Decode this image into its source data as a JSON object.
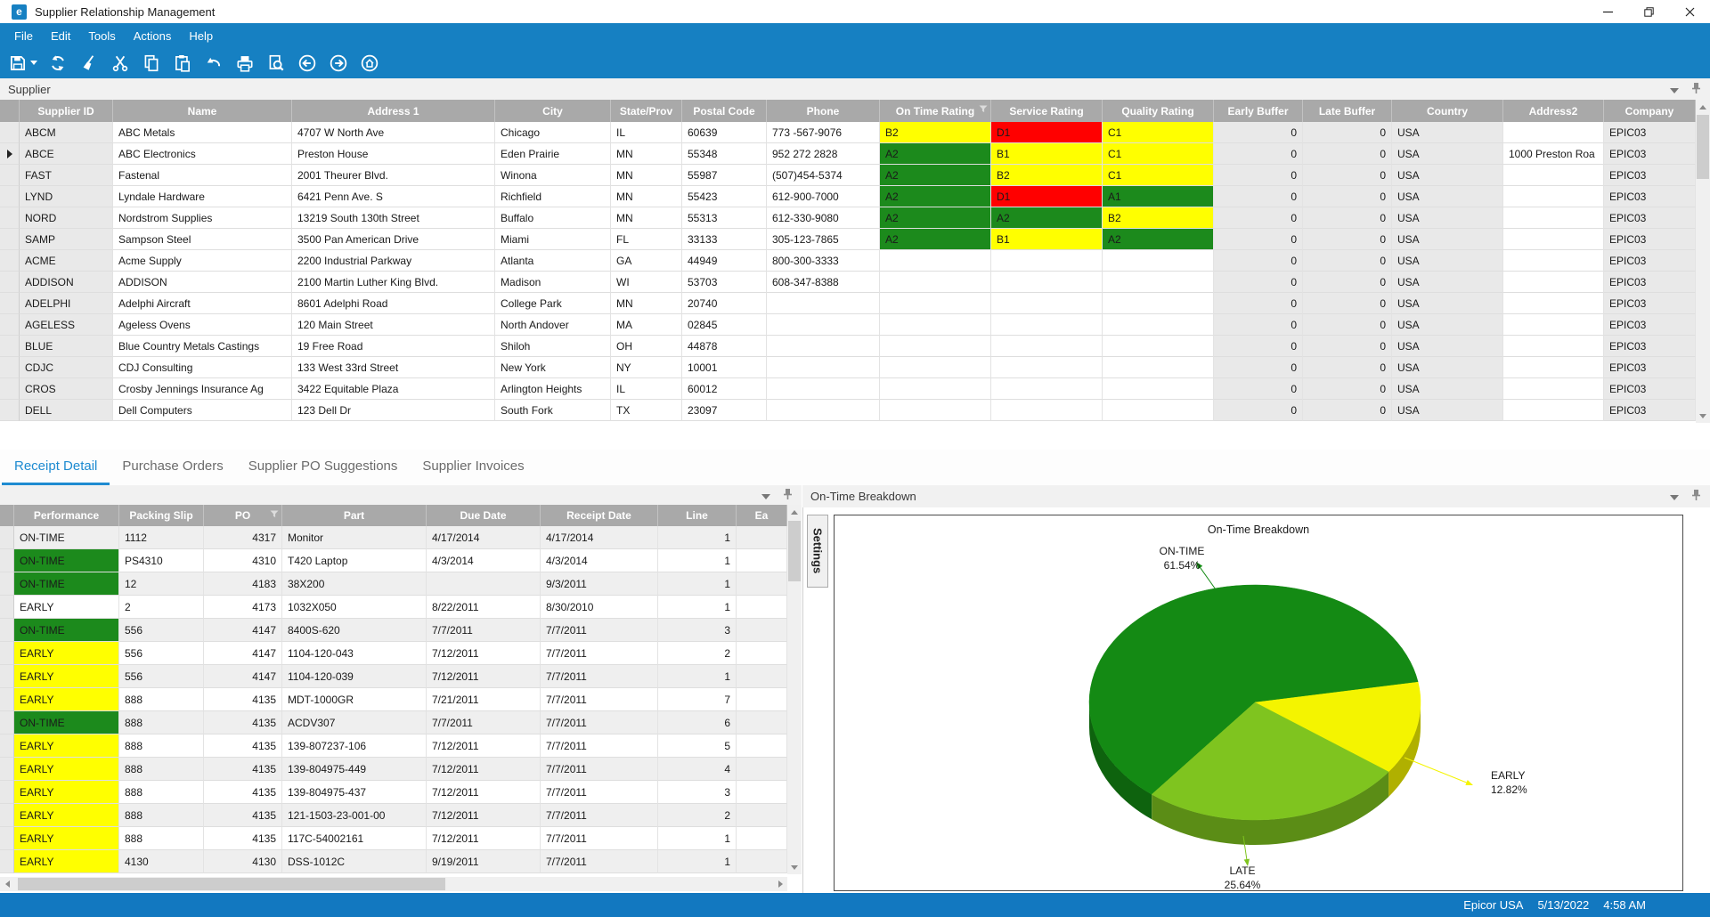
{
  "window": {
    "title": "Supplier Relationship Management",
    "logo": "e",
    "controls": [
      "minimize",
      "restore",
      "close"
    ]
  },
  "menu_bar": {
    "items": [
      "File",
      "Edit",
      "Tools",
      "Actions",
      "Help"
    ]
  },
  "toolbar": {
    "buttons": [
      "save",
      "refresh",
      "clear",
      "cut",
      "copy",
      "paste",
      "undo",
      "print",
      "print-preview",
      "back",
      "forward",
      "home"
    ]
  },
  "supplier_panel": {
    "title": "Supplier",
    "columns": [
      "",
      "Supplier ID",
      "Name",
      "Address 1",
      "City",
      "State/Prov",
      "Postal Code",
      "Phone",
      "On Time Rating",
      "Service Rating",
      "Quality Rating",
      "Early Buffer",
      "Late Buffer",
      "Country",
      "Address2",
      "Company"
    ],
    "filtered_column": "On Time Rating",
    "rows": [
      {
        "id": "ABCM",
        "name": "ABC Metals",
        "addr1": "4707 W North Ave",
        "city": "Chicago",
        "state": "IL",
        "postal": "60639",
        "phone": "773 -567-9076",
        "otr": "B2",
        "otr_c": "y",
        "svc": "D1",
        "svc_c": "r",
        "qual": "C1",
        "qual_c": "y",
        "early": "0",
        "late": "0",
        "country": "USA",
        "addr2": "",
        "company": "EPIC03",
        "selected": false
      },
      {
        "id": "ABCE",
        "name": "ABC Electronics",
        "addr1": "Preston House",
        "city": "Eden Prairie",
        "state": "MN",
        "postal": "55348",
        "phone": "952 272 2828",
        "otr": "A2",
        "otr_c": "g",
        "svc": "B1",
        "svc_c": "y",
        "qual": "C1",
        "qual_c": "y",
        "early": "0",
        "late": "0",
        "country": "USA",
        "addr2": "1000 Preston Roa",
        "company": "EPIC03",
        "selected": true
      },
      {
        "id": "FAST",
        "name": "Fastenal",
        "addr1": "2001 Theurer Blvd.",
        "city": "Winona",
        "state": "MN",
        "postal": "55987",
        "phone": "(507)454-5374",
        "otr": "A2",
        "otr_c": "g",
        "svc": "B2",
        "svc_c": "y",
        "qual": "C1",
        "qual_c": "y",
        "early": "0",
        "late": "0",
        "country": "USA",
        "addr2": "",
        "company": "EPIC03",
        "selected": false
      },
      {
        "id": "LYND",
        "name": "Lyndale Hardware",
        "addr1": "6421 Penn Ave. S",
        "city": "Richfield",
        "state": "MN",
        "postal": "55423",
        "phone": "612-900-7000",
        "otr": "A2",
        "otr_c": "g",
        "svc": "D1",
        "svc_c": "r",
        "qual": "A1",
        "qual_c": "g",
        "early": "0",
        "late": "0",
        "country": "USA",
        "addr2": "",
        "company": "EPIC03",
        "selected": false
      },
      {
        "id": "NORD",
        "name": "Nordstrom Supplies",
        "addr1": "13219 South 130th Street",
        "city": "Buffalo",
        "state": "MN",
        "postal": "55313",
        "phone": "612-330-9080",
        "otr": "A2",
        "otr_c": "g",
        "svc": "A2",
        "svc_c": "g",
        "qual": "B2",
        "qual_c": "y",
        "early": "0",
        "late": "0",
        "country": "USA",
        "addr2": "",
        "company": "EPIC03",
        "selected": false
      },
      {
        "id": "SAMP",
        "name": "Sampson Steel",
        "addr1": "3500 Pan American Drive",
        "city": "Miami",
        "state": "FL",
        "postal": "33133",
        "phone": "305-123-7865",
        "otr": "A2",
        "otr_c": "g",
        "svc": "B1",
        "svc_c": "y",
        "qual": "A2",
        "qual_c": "g",
        "early": "0",
        "late": "0",
        "country": "USA",
        "addr2": "",
        "company": "EPIC03",
        "selected": false
      },
      {
        "id": "ACME",
        "name": "Acme Supply",
        "addr1": "2200 Industrial Parkway",
        "city": "Atlanta",
        "state": "GA",
        "postal": "44949",
        "phone": "800-300-3333",
        "otr": "",
        "otr_c": "",
        "svc": "",
        "svc_c": "",
        "qual": "",
        "qual_c": "",
        "early": "0",
        "late": "0",
        "country": "USA",
        "addr2": "",
        "company": "EPIC03",
        "selected": false
      },
      {
        "id": "ADDISON",
        "name": "ADDISON",
        "addr1": "2100 Martin Luther King Blvd.",
        "city": "Madison",
        "state": "WI",
        "postal": "53703",
        "phone": "608-347-8388",
        "otr": "",
        "otr_c": "",
        "svc": "",
        "svc_c": "",
        "qual": "",
        "qual_c": "",
        "early": "0",
        "late": "0",
        "country": "USA",
        "addr2": "",
        "company": "EPIC03",
        "selected": false
      },
      {
        "id": "ADELPHI",
        "name": "Adelphi Aircraft",
        "addr1": "8601 Adelphi Road",
        "city": "College Park",
        "state": "MN",
        "postal": "20740",
        "phone": "",
        "otr": "",
        "otr_c": "",
        "svc": "",
        "svc_c": "",
        "qual": "",
        "qual_c": "",
        "early": "0",
        "late": "0",
        "country": "USA",
        "addr2": "",
        "company": "EPIC03",
        "selected": false
      },
      {
        "id": "AGELESS",
        "name": "Ageless Ovens",
        "addr1": "120 Main Street",
        "city": "North Andover",
        "state": "MA",
        "postal": "02845",
        "phone": "",
        "otr": "",
        "otr_c": "",
        "svc": "",
        "svc_c": "",
        "qual": "",
        "qual_c": "",
        "early": "0",
        "late": "0",
        "country": "USA",
        "addr2": "",
        "company": "EPIC03",
        "selected": false
      },
      {
        "id": "BLUE",
        "name": "Blue Country Metals Castings",
        "addr1": "19 Free Road",
        "city": "Shiloh",
        "state": "OH",
        "postal": "44878",
        "phone": "",
        "otr": "",
        "otr_c": "",
        "svc": "",
        "svc_c": "",
        "qual": "",
        "qual_c": "",
        "early": "0",
        "late": "0",
        "country": "USA",
        "addr2": "",
        "company": "EPIC03",
        "selected": false
      },
      {
        "id": "CDJC",
        "name": "CDJ Consulting",
        "addr1": "133 West 33rd Street",
        "city": "New York",
        "state": "NY",
        "postal": "10001",
        "phone": "",
        "otr": "",
        "otr_c": "",
        "svc": "",
        "svc_c": "",
        "qual": "",
        "qual_c": "",
        "early": "0",
        "late": "0",
        "country": "USA",
        "addr2": "",
        "company": "EPIC03",
        "selected": false
      },
      {
        "id": "CROS",
        "name": "Crosby Jennings Insurance Ag",
        "addr1": "3422 Equitable Plaza",
        "city": "Arlington Heights",
        "state": "IL",
        "postal": "60012",
        "phone": "",
        "otr": "",
        "otr_c": "",
        "svc": "",
        "svc_c": "",
        "qual": "",
        "qual_c": "",
        "early": "0",
        "late": "0",
        "country": "USA",
        "addr2": "",
        "company": "EPIC03",
        "selected": false
      },
      {
        "id": "DELL",
        "name": "Dell Computers",
        "addr1": "123 Dell Dr",
        "city": "South Fork",
        "state": "TX",
        "postal": "23097",
        "phone": "",
        "otr": "",
        "otr_c": "",
        "svc": "",
        "svc_c": "",
        "qual": "",
        "qual_c": "",
        "early": "0",
        "late": "0",
        "country": "USA",
        "addr2": "",
        "company": "EPIC03",
        "selected": false
      }
    ]
  },
  "detail_tabs": [
    {
      "label": "Receipt Detail",
      "active": true
    },
    {
      "label": "Purchase Orders",
      "active": false
    },
    {
      "label": "Supplier PO Suggestions",
      "active": false
    },
    {
      "label": "Supplier Invoices",
      "active": false
    }
  ],
  "receipt_panel": {
    "columns": [
      "",
      "Performance",
      "Packing Slip",
      "PO",
      "Part",
      "Due Date",
      "Receipt Date",
      "Line",
      "Ea"
    ],
    "filtered_column": "PO",
    "rows": [
      {
        "perf": "ON-TIME",
        "pc": "",
        "slip": "1112",
        "po": "4317",
        "part": "Monitor",
        "due": "4/17/2014",
        "recd": "4/17/2014",
        "line": "1"
      },
      {
        "perf": "ON-TIME",
        "pc": "g",
        "slip": "PS4310",
        "po": "4310",
        "part": "T420 Laptop",
        "due": "4/3/2014",
        "recd": "4/3/2014",
        "line": "1"
      },
      {
        "perf": "ON-TIME",
        "pc": "g",
        "slip": "12",
        "po": "4183",
        "part": "38X200",
        "due": "",
        "recd": "9/3/2011",
        "line": "1"
      },
      {
        "perf": "EARLY",
        "pc": "",
        "slip": "2",
        "po": "4173",
        "part": "1032X050",
        "due": "8/22/2011",
        "recd": "8/30/2010",
        "line": "1"
      },
      {
        "perf": "ON-TIME",
        "pc": "g",
        "slip": "556",
        "po": "4147",
        "part": "8400S-620",
        "due": "7/7/2011",
        "recd": "7/7/2011",
        "line": "3"
      },
      {
        "perf": "EARLY",
        "pc": "y",
        "slip": "556",
        "po": "4147",
        "part": "1104-120-043",
        "due": "7/12/2011",
        "recd": "7/7/2011",
        "line": "2"
      },
      {
        "perf": "EARLY",
        "pc": "y",
        "slip": "556",
        "po": "4147",
        "part": "1104-120-039",
        "due": "7/12/2011",
        "recd": "7/7/2011",
        "line": "1"
      },
      {
        "perf": "EARLY",
        "pc": "y",
        "slip": "888",
        "po": "4135",
        "part": "MDT-1000GR",
        "due": "7/21/2011",
        "recd": "7/7/2011",
        "line": "7"
      },
      {
        "perf": "ON-TIME",
        "pc": "g",
        "slip": "888",
        "po": "4135",
        "part": "ACDV307",
        "due": "7/7/2011",
        "recd": "7/7/2011",
        "line": "6"
      },
      {
        "perf": "EARLY",
        "pc": "y",
        "slip": "888",
        "po": "4135",
        "part": "139-807237-106",
        "due": "7/12/2011",
        "recd": "7/7/2011",
        "line": "5"
      },
      {
        "perf": "EARLY",
        "pc": "y",
        "slip": "888",
        "po": "4135",
        "part": "139-804975-449",
        "due": "7/12/2011",
        "recd": "7/7/2011",
        "line": "4"
      },
      {
        "perf": "EARLY",
        "pc": "y",
        "slip": "888",
        "po": "4135",
        "part": "139-804975-437",
        "due": "7/12/2011",
        "recd": "7/7/2011",
        "line": "3"
      },
      {
        "perf": "EARLY",
        "pc": "y",
        "slip": "888",
        "po": "4135",
        "part": "121-1503-23-001-00",
        "due": "7/12/2011",
        "recd": "7/7/2011",
        "line": "2"
      },
      {
        "perf": "EARLY",
        "pc": "y",
        "slip": "888",
        "po": "4135",
        "part": "117C-54002161",
        "due": "7/12/2011",
        "recd": "7/7/2011",
        "line": "1"
      },
      {
        "perf": "EARLY",
        "pc": "y",
        "slip": "4130",
        "po": "4130",
        "part": "DSS-1012C",
        "due": "9/19/2011",
        "recd": "7/7/2011",
        "line": "1"
      }
    ]
  },
  "chart_panel": {
    "title": "On-Time Breakdown",
    "settings_tab": "Settings"
  },
  "chart_data": {
    "type": "pie",
    "style": "pie-3d",
    "title": "On-Time Breakdown",
    "labels": [
      "ON-TIME",
      "EARLY",
      "LATE"
    ],
    "values": [
      61.54,
      12.82,
      25.64
    ],
    "colors": [
      "#148A14",
      "#F4F400",
      "#7FC41F"
    ],
    "start_angle_deg": 128.5,
    "legend": "none"
  },
  "status_bar": {
    "company": "Epicor USA",
    "date": "5/13/2022",
    "time": "4:58 AM"
  },
  "colors": {
    "band_blue": "#1680C2",
    "status_blue": "#1278C0",
    "active_tab": "#1E8BD1",
    "rating_green": "#1C8A1C",
    "rating_yellow": "#FFFF00",
    "rating_red": "#FF0000"
  }
}
